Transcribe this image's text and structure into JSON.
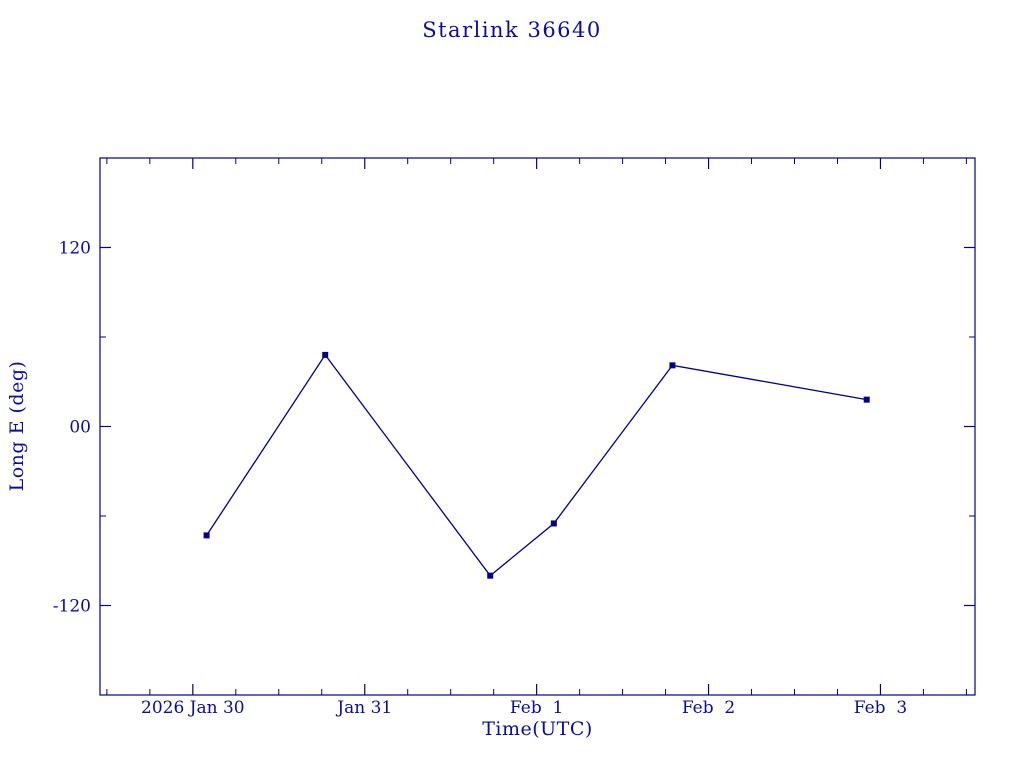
{
  "chart_data": {
    "type": "line",
    "title": "Starlink 36640",
    "xlabel": "Time(UTC)",
    "ylabel": "Long E (deg)",
    "text_color": "#0b0ba0",
    "line_color": "#00008b",
    "marker": "square",
    "x_axis": {
      "unit": "days since 2026 Jan 30 00:00 UTC",
      "lim": [
        -0.54,
        4.55
      ],
      "major_ticks": [
        {
          "day": 0,
          "label": "2026 Jan 30"
        },
        {
          "day": 1,
          "label": "Jan 31"
        },
        {
          "day": 2,
          "label": "Feb  1"
        },
        {
          "day": 3,
          "label": "Feb  2"
        },
        {
          "day": 4,
          "label": "Feb  3"
        }
      ],
      "minor_tick_step_days": 0.25
    },
    "y_axis": {
      "lim": [
        -180,
        180
      ],
      "major_ticks": [
        {
          "value": 120,
          "label": "120"
        },
        {
          "value": 0,
          "label": "00"
        },
        {
          "value": -120,
          "label": "-120"
        }
      ],
      "minor_tick_values": [
        -60,
        60
      ]
    },
    "series": [
      {
        "name": "Long E",
        "x_days": [
          0.08,
          0.77,
          1.73,
          2.1,
          2.79,
          3.92
        ],
        "values": [
          -73,
          48,
          -100,
          -65,
          41,
          18
        ]
      }
    ],
    "grid": false,
    "legend": "none"
  }
}
